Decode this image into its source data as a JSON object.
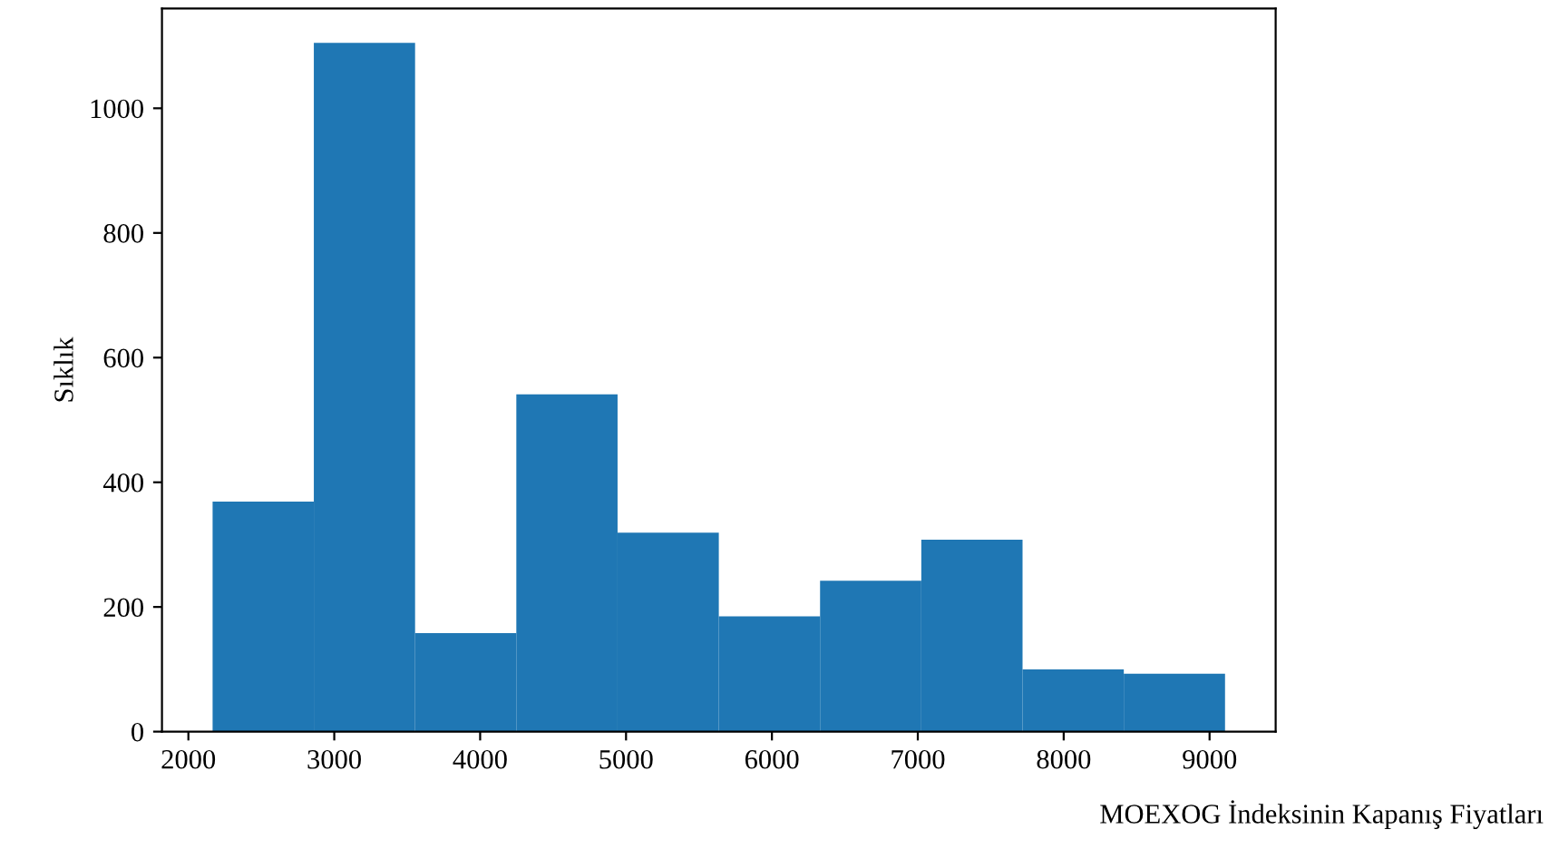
{
  "chart_data": {
    "type": "histogram",
    "xlabel": "MOEXOG İndeksinin Kapanış Fiyatları",
    "ylabel": "Sıklık",
    "bins": [
      2166,
      2860,
      3554,
      4248,
      4942,
      5636,
      6330,
      7024,
      7718,
      8412,
      9106
    ],
    "values": [
      369,
      1105,
      158,
      541,
      319,
      185,
      242,
      308,
      100,
      93
    ],
    "color": "#1f77b4",
    "xlim": [
      1819,
      9453
    ],
    "xticks": [
      2000,
      3000,
      4000,
      5000,
      6000,
      7000,
      8000,
      9000
    ],
    "ylim": [
      0,
      1160
    ],
    "yticks": [
      0,
      200,
      400,
      600,
      800,
      1000
    ],
    "grid": false
  }
}
